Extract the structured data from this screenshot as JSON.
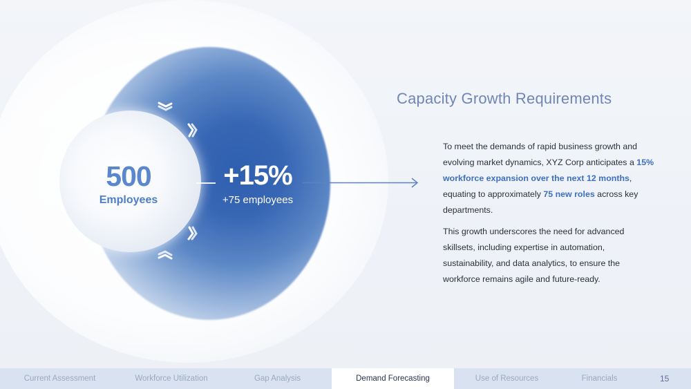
{
  "diagram": {
    "current_value": "500",
    "current_label": "Employees",
    "growth_value": "+15%",
    "growth_label": "+75 employees"
  },
  "content": {
    "title": "Capacity Growth Requirements",
    "paragraph1": {
      "part1": "To meet the demands of rapid business growth and evolving market dynamics, XYZ Corp anticipates a ",
      "highlight1": "15% workforce expansion over the next 12 months",
      "part2": ", equating to approximately ",
      "highlight2": "75 new roles",
      "part3": " across key departments."
    },
    "paragraph2": "This growth underscores the need for advanced skillsets, including expertise in automation, sustainability, and data analytics, to ensure the workforce remains agile and future-ready."
  },
  "nav": {
    "items": [
      "Current Assessment",
      "Workforce Utilization",
      "Gap Analysis",
      "Demand Forecasting",
      "Use of Resources",
      "Financials"
    ],
    "active": "Demand Forecasting",
    "page_number": "15"
  },
  "colors": {
    "accent": "#3d6fc1",
    "title": "#6f86b6",
    "sphere": "#3766b4",
    "nav_bg": "#d8e2f0"
  }
}
